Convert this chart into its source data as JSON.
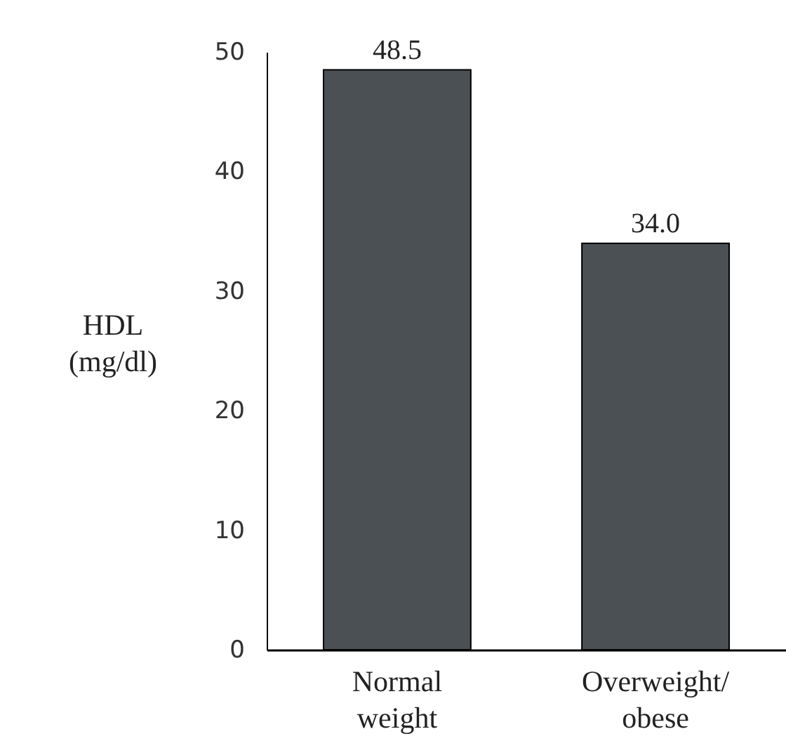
{
  "chart_data": {
    "type": "bar",
    "ylabel": "HDL (mg/dl)",
    "categories": [
      "Normal weight",
      "Overweight/obese"
    ],
    "values": [
      48.5,
      34.0
    ],
    "value_labels": [
      "48.5",
      "34.0"
    ],
    "color": "#4b5055",
    "ylim": [
      0,
      50
    ],
    "yticks": [
      0,
      10,
      20,
      30,
      40,
      50
    ],
    "grid": false
  }
}
